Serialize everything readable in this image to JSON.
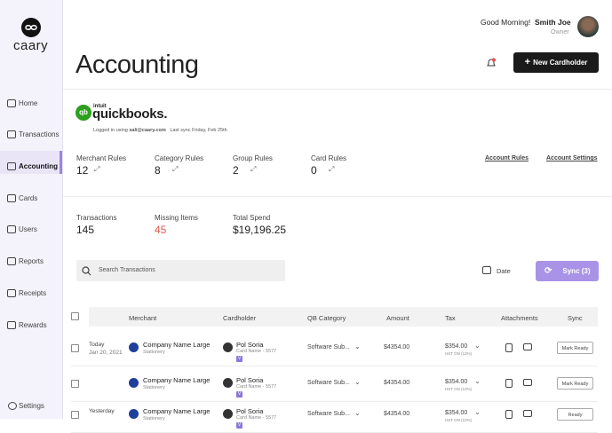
{
  "brand": "caary",
  "nav": [
    "Home",
    "Transactions",
    "Accounting",
    "Cards",
    "Users",
    "Reports",
    "Receipts",
    "Rewards"
  ],
  "settings": "Settings",
  "header": {
    "greeting": "Good Morning!",
    "user": "Smith Joe",
    "role": "Owner",
    "title": "Accounting",
    "button": "New Cardholder"
  },
  "integration": {
    "vendor": "intuit",
    "product": "quickbooks.",
    "login_prefix": "Logged in using",
    "email": "sali@caary.com",
    "last_sync": "Last sync Friday, Feb 25th"
  },
  "rules": [
    {
      "label": "Merchant Rules",
      "value": 12
    },
    {
      "label": "Category Rules",
      "value": 8
    },
    {
      "label": "Group Rules",
      "value": 2
    },
    {
      "label": "Card Rules",
      "value": 0
    }
  ],
  "links": [
    "Account Rules",
    "Account Settings"
  ],
  "stats": [
    {
      "label": "Transactions",
      "value": "145"
    },
    {
      "label": "Missing Items",
      "value": "45"
    },
    {
      "label": "Total Spend",
      "value": "$19,196.25"
    }
  ],
  "search_placeholder": "Search Transactions",
  "date_filter": "Date",
  "sync_button": "Sync (3)",
  "table": {
    "columns": [
      "Merchant",
      "Cardholder",
      "QB Category",
      "Amount",
      "Tax",
      "Attachments",
      "Sync"
    ],
    "rows": [
      {
        "day": "Today",
        "date": "Jan 20, 2021",
        "merchant": "Company Name Large",
        "merchant_category": "Stationery",
        "cardholder": "Pol Soria",
        "card": "Card Name - 5577",
        "card_badge": "V",
        "category": "Software Sub...",
        "amount": "$4354.00",
        "tax": "$354.00",
        "tax_note": "HST ON (13%)",
        "status": "Mark Ready"
      },
      {
        "merchant": "Company Name Large",
        "merchant_category": "Stationery",
        "cardholder": "Pol Soria",
        "card": "Card Name - 5577",
        "card_badge": "V",
        "category": "Software Sub...",
        "amount": "$4354.00",
        "tax": "$354.00",
        "tax_note": "HST ON (13%)",
        "status": "Mark Ready"
      },
      {
        "day": "Yesterday",
        "merchant": "Company Name Large",
        "merchant_category": "Stationery",
        "cardholder": "Pol Soria",
        "card": "Card Name - 5577",
        "card_badge": "V",
        "category": "Software Sub...",
        "amount": "$4354.00",
        "tax": "$354.00",
        "tax_note": "HST ON (13%)",
        "status": "Ready"
      }
    ]
  }
}
